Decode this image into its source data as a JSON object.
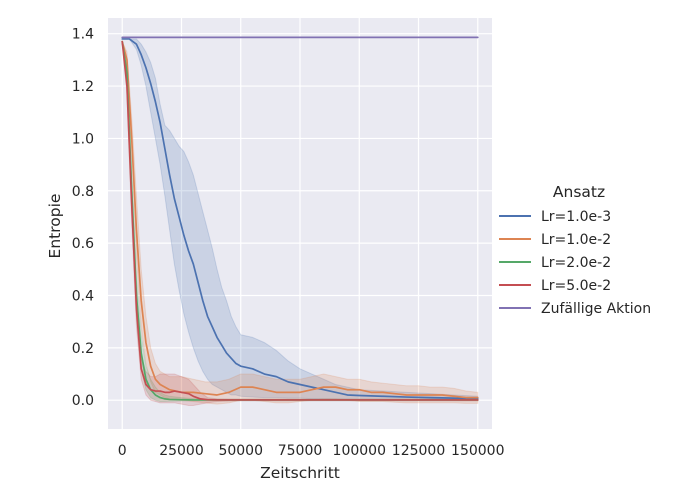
{
  "chart_data": {
    "type": "line",
    "xlabel": "Zeitschritt",
    "ylabel": "Entropie",
    "xlim": [
      -6000,
      156000
    ],
    "ylim": [
      -0.11,
      1.46
    ],
    "xticks": [
      0,
      25000,
      50000,
      75000,
      100000,
      125000,
      150000
    ],
    "yticks": [
      0.0,
      0.2,
      0.4,
      0.6,
      0.8,
      1.0,
      1.2,
      1.4
    ],
    "grid": true,
    "legend": {
      "title": "Ansatz",
      "placement": "right"
    },
    "series": [
      {
        "name": "Lr=1.0e-3",
        "color": "#4c72b0",
        "x": [
          0,
          3000,
          6000,
          8000,
          10000,
          12000,
          14000,
          16000,
          18000,
          20000,
          22000,
          24000,
          26000,
          28000,
          30000,
          32000,
          34000,
          36000,
          38000,
          40000,
          42000,
          44000,
          46000,
          48000,
          50000,
          55000,
          60000,
          65000,
          70000,
          75000,
          80000,
          85000,
          90000,
          95000,
          100000,
          110000,
          120000,
          130000,
          140000,
          150000
        ],
        "y": [
          1.38,
          1.38,
          1.36,
          1.32,
          1.27,
          1.21,
          1.14,
          1.06,
          0.96,
          0.86,
          0.77,
          0.7,
          0.63,
          0.57,
          0.52,
          0.45,
          0.38,
          0.32,
          0.28,
          0.24,
          0.21,
          0.18,
          0.16,
          0.14,
          0.13,
          0.12,
          0.1,
          0.09,
          0.07,
          0.06,
          0.05,
          0.04,
          0.03,
          0.02,
          0.018,
          0.015,
          0.012,
          0.01,
          0.008,
          0.005
        ],
        "lower": [
          1.38,
          1.38,
          1.34,
          1.28,
          1.2,
          1.1,
          1.0,
          0.9,
          0.78,
          0.65,
          0.52,
          0.42,
          0.33,
          0.26,
          0.2,
          0.15,
          0.11,
          0.08,
          0.06,
          0.05,
          0.04,
          0.03,
          0.02,
          0.02,
          0.015,
          0.012,
          0.01,
          0.01,
          0.008,
          0.008,
          0.006,
          0.005,
          0.004,
          0.003,
          0.002,
          0.002,
          0.001,
          0.001,
          0.001,
          0.001
        ],
        "upper": [
          1.38,
          1.38,
          1.38,
          1.36,
          1.33,
          1.29,
          1.23,
          1.13,
          1.05,
          1.03,
          1.0,
          0.97,
          0.95,
          0.91,
          0.86,
          0.79,
          0.72,
          0.65,
          0.58,
          0.5,
          0.43,
          0.38,
          0.32,
          0.28,
          0.25,
          0.24,
          0.22,
          0.19,
          0.15,
          0.12,
          0.1,
          0.08,
          0.06,
          0.05,
          0.04,
          0.035,
          0.03,
          0.025,
          0.02,
          0.015
        ]
      },
      {
        "name": "Lr=1.0e-2",
        "color": "#dd8452",
        "x": [
          0,
          2000,
          4000,
          6000,
          8000,
          10000,
          12000,
          14000,
          16000,
          18000,
          20000,
          25000,
          30000,
          35000,
          40000,
          45000,
          50000,
          55000,
          60000,
          65000,
          70000,
          75000,
          80000,
          85000,
          90000,
          95000,
          100000,
          105000,
          110000,
          115000,
          120000,
          125000,
          130000,
          135000,
          140000,
          145000,
          150000
        ],
        "y": [
          1.37,
          1.3,
          1.0,
          0.65,
          0.38,
          0.22,
          0.13,
          0.08,
          0.06,
          0.05,
          0.04,
          0.03,
          0.03,
          0.025,
          0.02,
          0.03,
          0.05,
          0.05,
          0.04,
          0.03,
          0.03,
          0.03,
          0.04,
          0.05,
          0.05,
          0.04,
          0.04,
          0.03,
          0.03,
          0.025,
          0.02,
          0.02,
          0.02,
          0.02,
          0.015,
          0.01,
          0.01
        ],
        "lower": [
          1.37,
          1.28,
          0.95,
          0.55,
          0.28,
          0.14,
          0.07,
          0.03,
          0.02,
          0.01,
          0.005,
          0.0,
          -0.005,
          -0.01,
          -0.015,
          -0.01,
          0.0,
          0.0,
          -0.005,
          -0.01,
          -0.01,
          -0.005,
          0.0,
          0.005,
          0.005,
          0.0,
          -0.005,
          -0.005,
          -0.005,
          -0.008,
          -0.01,
          -0.01,
          -0.01,
          -0.01,
          -0.01,
          -0.012,
          -0.012
        ],
        "upper": [
          1.37,
          1.33,
          1.08,
          0.78,
          0.5,
          0.32,
          0.2,
          0.14,
          0.11,
          0.1,
          0.09,
          0.09,
          0.08,
          0.07,
          0.07,
          0.08,
          0.1,
          0.1,
          0.09,
          0.08,
          0.08,
          0.08,
          0.09,
          0.1,
          0.09,
          0.08,
          0.08,
          0.07,
          0.065,
          0.06,
          0.055,
          0.055,
          0.05,
          0.05,
          0.045,
          0.035,
          0.03
        ]
      },
      {
        "name": "Lr=2.0e-2",
        "color": "#55a868",
        "x": [
          0,
          2000,
          4000,
          6000,
          8000,
          10000,
          12000,
          14000,
          16000,
          18000,
          20000,
          25000,
          30000,
          40000,
          60000,
          80000,
          100000,
          120000,
          150000
        ],
        "y": [
          1.37,
          1.25,
          0.8,
          0.4,
          0.18,
          0.08,
          0.04,
          0.02,
          0.01,
          0.005,
          0.003,
          0.002,
          0.001,
          0.001,
          0.001,
          0.001,
          0.001,
          0.001,
          0.001
        ],
        "lower": [
          1.37,
          1.22,
          0.72,
          0.32,
          0.12,
          0.04,
          0.01,
          0.0,
          -0.005,
          -0.005,
          -0.004,
          -0.003,
          -0.002,
          -0.002,
          -0.002,
          -0.002,
          -0.002,
          -0.002,
          -0.002
        ],
        "upper": [
          1.37,
          1.28,
          0.88,
          0.48,
          0.25,
          0.13,
          0.08,
          0.05,
          0.03,
          0.02,
          0.015,
          0.01,
          0.006,
          0.004,
          0.004,
          0.004,
          0.004,
          0.004,
          0.004
        ]
      },
      {
        "name": "Lr=5.0e-2",
        "color": "#c44e52",
        "x": [
          0,
          2000,
          4000,
          6000,
          8000,
          10000,
          12000,
          14000,
          16000,
          18000,
          20000,
          22000,
          25000,
          28000,
          30000,
          33000,
          36000,
          40000,
          45000,
          50000,
          60000,
          80000,
          100000,
          120000,
          150000
        ],
        "y": [
          1.37,
          1.2,
          0.75,
          0.35,
          0.12,
          0.06,
          0.04,
          0.035,
          0.035,
          0.03,
          0.03,
          0.035,
          0.03,
          0.025,
          0.015,
          0.005,
          0.002,
          0.001,
          0.001,
          0.001,
          0.001,
          0.001,
          0.001,
          0.001,
          0.001
        ],
        "lower": [
          1.37,
          1.17,
          0.68,
          0.28,
          0.08,
          0.02,
          0.0,
          -0.005,
          -0.01,
          -0.01,
          -0.01,
          -0.01,
          -0.015,
          -0.02,
          -0.02,
          -0.015,
          -0.01,
          -0.005,
          -0.003,
          -0.002,
          -0.002,
          -0.002,
          -0.002,
          -0.002,
          -0.002
        ],
        "upper": [
          1.37,
          1.23,
          0.82,
          0.42,
          0.17,
          0.11,
          0.09,
          0.09,
          0.1,
          0.1,
          0.1,
          0.1,
          0.09,
          0.08,
          0.06,
          0.03,
          0.01,
          0.005,
          0.004,
          0.004,
          0.004,
          0.004,
          0.004,
          0.004,
          0.004
        ]
      },
      {
        "name": "Zufällige Aktion",
        "color": "#8172b3",
        "x": [
          0,
          150000
        ],
        "y": [
          1.386,
          1.386
        ]
      }
    ]
  }
}
